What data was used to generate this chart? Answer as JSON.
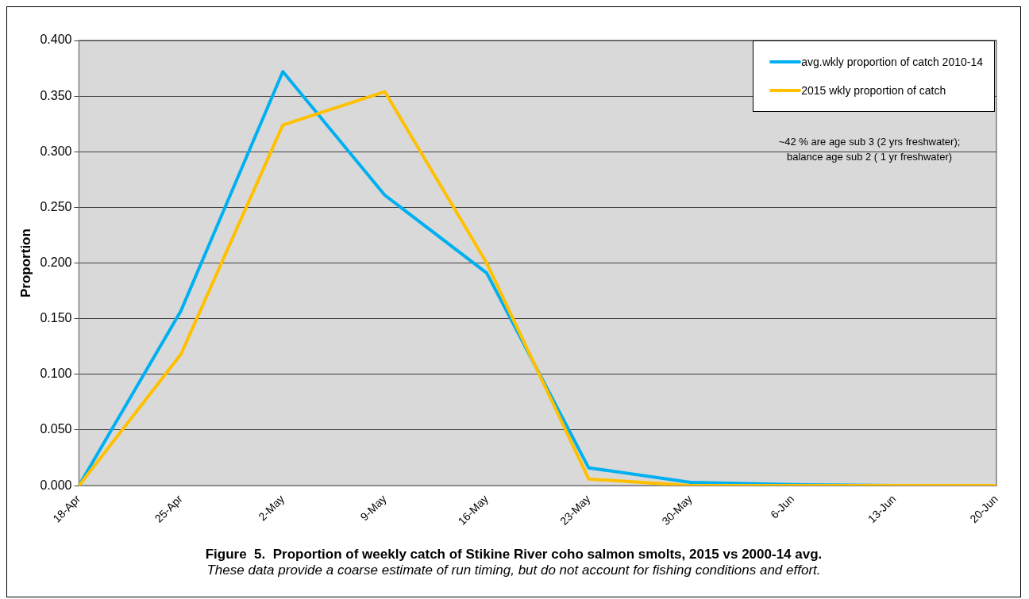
{
  "chart_data": {
    "type": "line",
    "title": "Figure  5.  Proportion of weekly catch of Stikine River coho salmon smolts, 2015 vs 2000-14 avg.",
    "subtitle": "These data provide a coarse estimate of run timing, but do not account for fishing conditions and effort.",
    "ylabel": "Proportion",
    "categories": [
      "18-Apr",
      "25-Apr",
      "2-May",
      "9-May",
      "16-May",
      "23-May",
      "30-May",
      "6-Jun",
      "13-Jun",
      "20-Jun"
    ],
    "series": [
      {
        "name": "avg.wkly proportion of catch 2010-14",
        "color": "#00b0f0",
        "values": [
          0,
          0.157,
          0.372,
          0.261,
          0.191,
          0.016,
          0.003,
          0.001,
          0,
          0
        ]
      },
      {
        "name": "2015 wkly proportion of catch",
        "color": "#ffc000",
        "values": [
          0,
          0.118,
          0.324,
          0.354,
          0.2,
          0.006,
          0,
          0,
          0,
          0
        ]
      }
    ],
    "ylim": [
      0,
      0.4
    ],
    "yticks": [
      {
        "value": 0,
        "label": "0.000"
      },
      {
        "value": 0.05,
        "label": "0.050"
      },
      {
        "value": 0.1,
        "label": "0.100"
      },
      {
        "value": 0.15,
        "label": "0.150"
      },
      {
        "value": 0.2,
        "label": "0.200"
      },
      {
        "value": 0.25,
        "label": "0.250"
      },
      {
        "value": 0.3,
        "label": "0.300"
      },
      {
        "value": 0.35,
        "label": "0.350"
      },
      {
        "value": 0.4,
        "label": "0.400"
      }
    ],
    "grid": "y",
    "legend": "top right",
    "marker": "none",
    "line_style": "solid",
    "annotations": [
      "~42 % are age sub 3 (2 yrs freshwater);\nbalance age sub 2 ( 1 yr freshwater)"
    ]
  }
}
